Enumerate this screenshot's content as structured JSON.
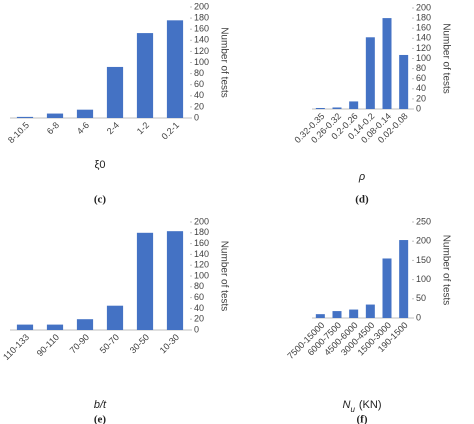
{
  "chart_data": [
    {
      "type": "bar",
      "caption": "(c)",
      "x_label": [
        "ξ0"
      ],
      "y_label": "Number of tests",
      "categories": [
        "8-10.5",
        "6-8",
        "4-6",
        "2-4",
        "1-2",
        "0.2-1"
      ],
      "values": [
        2,
        8,
        15,
        92,
        153,
        176
      ],
      "color": "#4472c4",
      "ylim": [
        0,
        200
      ],
      "yticks": [
        0,
        20,
        40,
        60,
        80,
        100,
        120,
        140,
        160,
        180,
        200
      ],
      "italic": false
    },
    {
      "type": "bar",
      "caption": "(d)",
      "x_label": [
        "ρ"
      ],
      "y_label": "Number of tests",
      "categories": [
        "0.32-0.35",
        "0.26-0.32",
        "0.2-0.26",
        "0.14-0.2",
        "0.08-0.14",
        "0.02-0.08"
      ],
      "values": [
        2,
        3,
        15,
        142,
        180,
        107
      ],
      "color": "#4472c4",
      "ylim": [
        0,
        200
      ],
      "yticks": [
        0,
        20,
        40,
        60,
        80,
        100,
        120,
        140,
        160,
        180,
        200
      ],
      "italic": true
    },
    {
      "type": "bar",
      "caption": "(e)",
      "x_label": [
        "b/t"
      ],
      "y_label": "Number of tests",
      "categories": [
        "110-133",
        "90-110",
        "70-90",
        "50-70",
        "30-50",
        "10-30"
      ],
      "values": [
        10,
        10,
        20,
        45,
        180,
        183
      ],
      "color": "#4472c4",
      "ylim": [
        0,
        200
      ],
      "yticks": [
        0,
        20,
        40,
        60,
        80,
        100,
        120,
        140,
        160,
        180,
        200
      ],
      "italic": true
    },
    {
      "type": "bar",
      "caption": "(f)",
      "x_label": [
        "N",
        "u",
        "(KN)"
      ],
      "y_label": "Number of tests",
      "categories": [
        "7500-15000",
        "6000-7500",
        "4500-6000",
        "3000-4500",
        "1500-3000",
        "190-1500"
      ],
      "values": [
        10,
        18,
        22,
        35,
        155,
        203
      ],
      "color": "#4472c4",
      "ylim": [
        0,
        250
      ],
      "yticks": [
        0,
        50,
        100,
        150,
        200,
        250
      ],
      "italic": false
    }
  ]
}
